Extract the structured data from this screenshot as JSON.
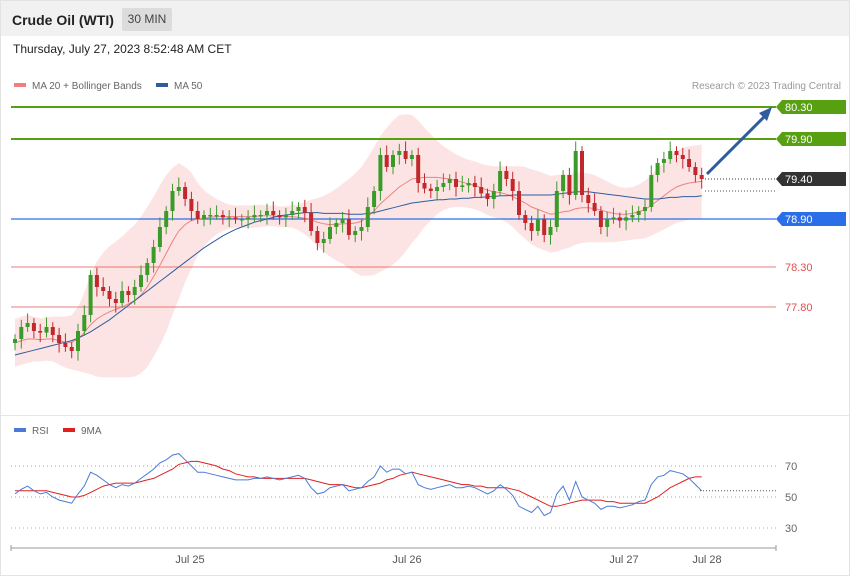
{
  "header": {
    "title": "Crude Oil (WTI)",
    "timeframe": "30 MIN"
  },
  "date_text": "Thursday, July 27, 2023 8:52:48 AM CET",
  "credit": "Research © 2023 Trading Central",
  "legend_main": [
    {
      "label": "MA 20 + Bollinger Bands",
      "color": "#f08080"
    },
    {
      "label": "MA 50",
      "color": "#2e5c9e"
    }
  ],
  "legend_rsi": [
    {
      "label": "RSI",
      "color": "#4a7ad8"
    },
    {
      "label": "9MA",
      "color": "#e02020"
    }
  ],
  "colors": {
    "bull": "#3a9a2a",
    "bear": "#c0282c",
    "resistance": "#56a012",
    "pivot": "#2a6fe8",
    "support": "#e05050",
    "last": "#333333",
    "arrow": "#2e5c9e",
    "band": "#fde4e4"
  },
  "chart_data": [
    {
      "type": "candlestick",
      "title": "Crude Oil (WTI)",
      "timeframe": "30 MIN",
      "x_ticks": [
        "Jul 25",
        "Jul 26",
        "Jul 27",
        "Jul 28"
      ],
      "ylim": [
        76.4,
        80.55
      ],
      "levels": [
        {
          "value": 80.3,
          "label": "80.30",
          "kind": "resistance"
        },
        {
          "value": 79.9,
          "label": "79.90",
          "kind": "resistance"
        },
        {
          "value": 79.4,
          "label": "79.40",
          "kind": "last"
        },
        {
          "value": 78.9,
          "label": "78.90",
          "kind": "pivot"
        },
        {
          "value": 78.3,
          "label": "78.30",
          "kind": "support"
        },
        {
          "value": 77.8,
          "label": "77.80",
          "kind": "support"
        }
      ],
      "close": [
        77.4,
        77.55,
        77.6,
        77.5,
        77.48,
        77.55,
        77.45,
        77.35,
        77.3,
        77.25,
        77.5,
        77.7,
        78.2,
        78.05,
        78.0,
        77.9,
        77.85,
        78.0,
        77.95,
        78.05,
        78.2,
        78.35,
        78.55,
        78.8,
        79.0,
        79.25,
        79.3,
        79.15,
        79.0,
        78.9,
        78.95,
        78.95,
        78.95,
        78.92,
        78.92,
        78.9,
        78.9,
        78.92,
        78.95,
        78.95,
        79.0,
        78.95,
        78.92,
        78.95,
        79.0,
        79.05,
        78.98,
        78.75,
        78.6,
        78.65,
        78.8,
        78.85,
        78.9,
        78.7,
        78.75,
        78.8,
        79.05,
        79.25,
        79.7,
        79.55,
        79.7,
        79.75,
        79.65,
        79.7,
        79.35,
        79.28,
        79.25,
        79.3,
        79.35,
        79.4,
        79.3,
        79.32,
        79.35,
        79.3,
        79.22,
        79.15,
        79.25,
        79.5,
        79.4,
        79.25,
        78.95,
        78.85,
        78.75,
        78.9,
        78.7,
        78.8,
        79.25,
        79.45,
        79.2,
        79.75,
        79.2,
        79.1,
        79.0,
        78.8,
        78.9,
        78.92,
        78.88,
        78.92,
        78.95,
        79.0,
        79.05,
        79.45,
        79.6,
        79.65,
        79.75,
        79.7,
        79.65,
        79.55,
        79.45,
        79.4
      ],
      "ma20": [
        77.35,
        77.38,
        77.4,
        77.4,
        77.39,
        77.4,
        77.4,
        77.38,
        77.36,
        77.36,
        77.4,
        77.48,
        77.58,
        77.65,
        77.7,
        77.74,
        77.77,
        77.8,
        77.84,
        77.88,
        77.95,
        78.05,
        78.18,
        78.32,
        78.47,
        78.62,
        78.75,
        78.83,
        78.88,
        78.9,
        78.91,
        78.92,
        78.93,
        78.93,
        78.93,
        78.93,
        78.93,
        78.93,
        78.93,
        78.94,
        78.94,
        78.94,
        78.93,
        78.93,
        78.93,
        78.92,
        78.91,
        78.89,
        78.86,
        78.84,
        78.83,
        78.83,
        78.84,
        78.84,
        78.85,
        78.87,
        78.93,
        79.0,
        79.09,
        79.16,
        79.23,
        79.3,
        79.35,
        79.4,
        79.41,
        79.42,
        79.42,
        79.42,
        79.41,
        79.4,
        79.38,
        79.36,
        79.34,
        79.32,
        79.29,
        79.26,
        79.24,
        79.23,
        79.21,
        79.18,
        79.14,
        79.1,
        79.05,
        79.02,
        78.99,
        78.96,
        78.97,
        78.99,
        79.0,
        79.03,
        79.04,
        79.04,
        79.03,
        79.01,
        78.99,
        78.97,
        78.96,
        78.96,
        78.97,
        78.99,
        79.02,
        79.07,
        79.13,
        79.19,
        79.25,
        79.3,
        79.33,
        79.35,
        79.36,
        79.37
      ],
      "ma50": [
        77.2,
        77.22,
        77.24,
        77.26,
        77.28,
        77.3,
        77.32,
        77.34,
        77.36,
        77.38,
        77.41,
        77.45,
        77.49,
        77.54,
        77.59,
        77.64,
        77.7,
        77.76,
        77.82,
        77.88,
        77.94,
        78.0,
        78.06,
        78.12,
        78.18,
        78.24,
        78.3,
        78.36,
        78.42,
        78.48,
        78.54,
        78.59,
        78.64,
        78.69,
        78.73,
        78.77,
        78.8,
        78.83,
        78.86,
        78.88,
        78.9,
        78.92,
        78.94,
        78.95,
        78.96,
        78.97,
        78.98,
        78.98,
        78.98,
        78.97,
        78.97,
        78.97,
        78.97,
        78.96,
        78.96,
        78.96,
        78.97,
        78.98,
        79.0,
        79.02,
        79.04,
        79.06,
        79.08,
        79.1,
        79.11,
        79.12,
        79.13,
        79.14,
        79.14,
        79.15,
        79.15,
        79.16,
        79.16,
        79.17,
        79.17,
        79.18,
        79.18,
        79.19,
        79.19,
        79.2,
        79.2,
        79.2,
        79.2,
        79.2,
        79.2,
        79.2,
        79.21,
        79.22,
        79.23,
        79.24,
        79.24,
        79.24,
        79.23,
        79.22,
        79.21,
        79.2,
        79.19,
        79.18,
        79.17,
        79.16,
        79.15,
        79.15,
        79.15,
        79.16,
        79.17,
        79.17,
        79.18,
        79.18,
        79.18,
        79.19
      ],
      "band_width": [
        0.3,
        0.3,
        0.3,
        0.28,
        0.27,
        0.27,
        0.28,
        0.3,
        0.32,
        0.34,
        0.4,
        0.5,
        0.62,
        0.72,
        0.78,
        0.82,
        0.85,
        0.88,
        0.92,
        0.95,
        0.98,
        1.0,
        1.0,
        1.0,
        0.98,
        0.92,
        0.85,
        0.72,
        0.6,
        0.45,
        0.35,
        0.28,
        0.22,
        0.18,
        0.15,
        0.14,
        0.14,
        0.14,
        0.14,
        0.14,
        0.13,
        0.13,
        0.13,
        0.13,
        0.14,
        0.16,
        0.2,
        0.25,
        0.3,
        0.35,
        0.4,
        0.45,
        0.5,
        0.56,
        0.62,
        0.68,
        0.74,
        0.8,
        0.85,
        0.88,
        0.9,
        0.9,
        0.86,
        0.8,
        0.72,
        0.62,
        0.54,
        0.46,
        0.4,
        0.36,
        0.33,
        0.31,
        0.3,
        0.3,
        0.3,
        0.31,
        0.32,
        0.33,
        0.35,
        0.38,
        0.42,
        0.45,
        0.47,
        0.48,
        0.48,
        0.48,
        0.48,
        0.47,
        0.46,
        0.45,
        0.44,
        0.43,
        0.42,
        0.4,
        0.38,
        0.36,
        0.34,
        0.33,
        0.33,
        0.34,
        0.36,
        0.38,
        0.4,
        0.42,
        0.44,
        0.45,
        0.46,
        0.46,
        0.46,
        0.46
      ]
    },
    {
      "type": "line",
      "title": "RSI",
      "x_ticks": [
        "Jul 25",
        "Jul 26",
        "Jul 27",
        "Jul 28"
      ],
      "yticks": [
        30,
        50,
        70
      ],
      "ylim": [
        18,
        82
      ],
      "series": [
        {
          "name": "RSI",
          "values": [
            52,
            55,
            57,
            54,
            52,
            53,
            50,
            48,
            47,
            46,
            52,
            57,
            66,
            64,
            61,
            58,
            56,
            58,
            57,
            59,
            62,
            65,
            68,
            72,
            74,
            77,
            78,
            74,
            70,
            66,
            66,
            65,
            64,
            63,
            62,
            61,
            61,
            61,
            62,
            62,
            63,
            62,
            61,
            62,
            63,
            64,
            62,
            56,
            52,
            53,
            56,
            57,
            58,
            54,
            55,
            56,
            60,
            63,
            70,
            66,
            68,
            68,
            65,
            66,
            58,
            56,
            55,
            56,
            57,
            58,
            56,
            56,
            57,
            56,
            54,
            52,
            54,
            58,
            55,
            51,
            44,
            42,
            40,
            44,
            38,
            40,
            52,
            57,
            48,
            60,
            50,
            48,
            46,
            42,
            44,
            44,
            43,
            44,
            45,
            47,
            48,
            58,
            63,
            64,
            67,
            66,
            65,
            62,
            58,
            54
          ]
        },
        {
          "name": "9MA",
          "values": [
            54,
            54,
            54,
            54,
            54,
            54,
            53,
            52,
            51,
            50,
            50,
            51,
            53,
            55,
            57,
            58,
            59,
            59,
            59,
            59,
            60,
            61,
            62,
            64,
            66,
            68,
            71,
            72,
            73,
            73,
            72,
            71,
            70,
            68,
            67,
            65,
            64,
            63,
            63,
            62,
            62,
            62,
            62,
            62,
            62,
            62,
            62,
            61,
            60,
            59,
            58,
            58,
            58,
            57,
            56,
            56,
            57,
            58,
            59,
            61,
            62,
            64,
            65,
            66,
            65,
            64,
            63,
            62,
            61,
            60,
            59,
            58,
            58,
            57,
            57,
            56,
            56,
            56,
            56,
            55,
            54,
            52,
            50,
            48,
            46,
            44,
            44,
            45,
            46,
            47,
            48,
            48,
            48,
            48,
            47,
            47,
            46,
            46,
            46,
            46,
            46,
            48,
            50,
            53,
            56,
            58,
            60,
            62,
            63,
            63
          ]
        }
      ]
    }
  ]
}
